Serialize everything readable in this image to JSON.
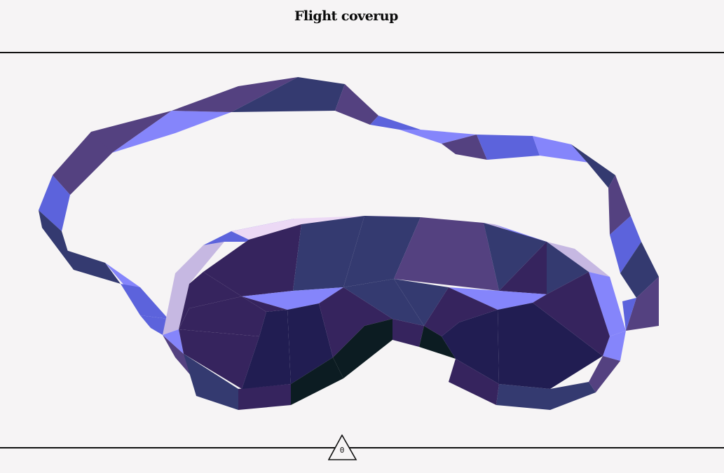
{
  "header": {
    "title": "Flight coverup"
  },
  "model": {
    "icon": "sleep-mask-3d-model",
    "colors": {
      "strap_dark": "#544180",
      "strap_mid": "#343a70",
      "strap_light": "#5c63dc",
      "strap_bright": "#8585fb",
      "mask_deep": "#211d52",
      "mask_dark": "#36245e",
      "mask_mid": "#343a70",
      "mask_violet": "#544180",
      "mask_edge": "#c6b8e2",
      "nose_shadow": "#0c1c22"
    }
  },
  "footer": {
    "counter_value": "0",
    "counter_icon": "triangle-icon"
  }
}
